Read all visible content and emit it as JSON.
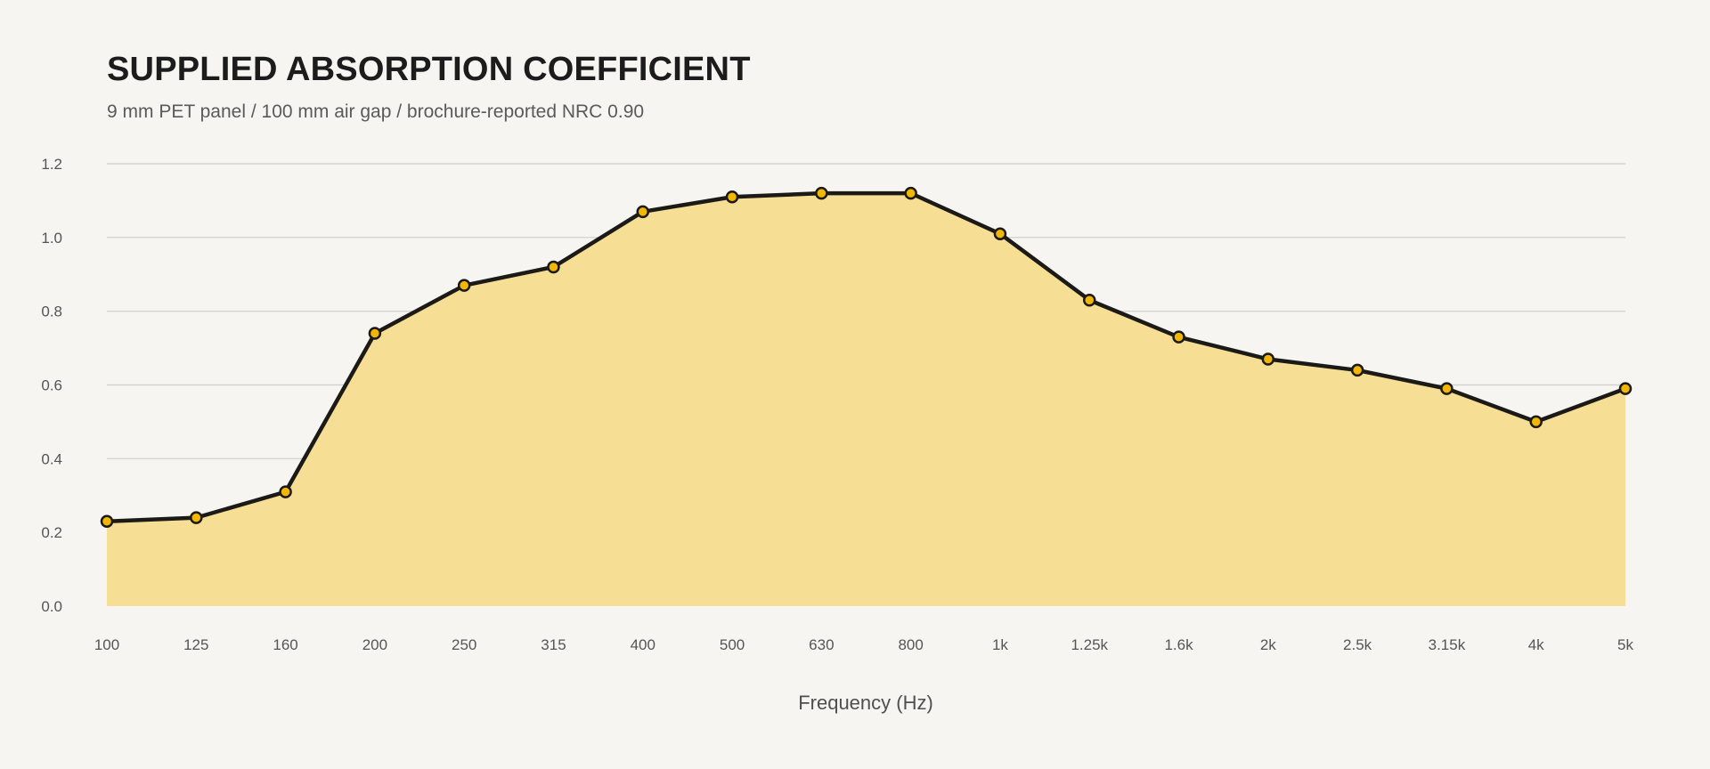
{
  "chart_data": {
    "type": "area",
    "title": "SUPPLIED ABSORPTION COEFFICIENT",
    "subtitle": "9 mm PET panel / 100 mm air gap / brochure-reported NRC 0.90",
    "xlabel": "Frequency (Hz)",
    "ylabel": "",
    "categories": [
      "100",
      "125",
      "160",
      "200",
      "250",
      "315",
      "400",
      "500",
      "630",
      "800",
      "1k",
      "1.25k",
      "1.6k",
      "2k",
      "2.5k",
      "3.15k",
      "4k",
      "5k"
    ],
    "values": [
      0.23,
      0.24,
      0.31,
      0.74,
      0.87,
      0.92,
      1.07,
      1.11,
      1.12,
      1.12,
      1.01,
      0.83,
      0.73,
      0.67,
      0.64,
      0.59,
      0.5,
      0.59
    ],
    "ylim": [
      0,
      1.2
    ],
    "yticks": [
      "0.0",
      "0.2",
      "0.4",
      "0.6",
      "0.8",
      "1.0",
      "1.2"
    ],
    "grid": true,
    "legend": "none",
    "colors": {
      "area_fill": "#f6de94",
      "line": "#1c1a17",
      "marker_fill": "#f2b705",
      "grid": "#cfcdc9",
      "background": "#f7f5f1"
    }
  }
}
